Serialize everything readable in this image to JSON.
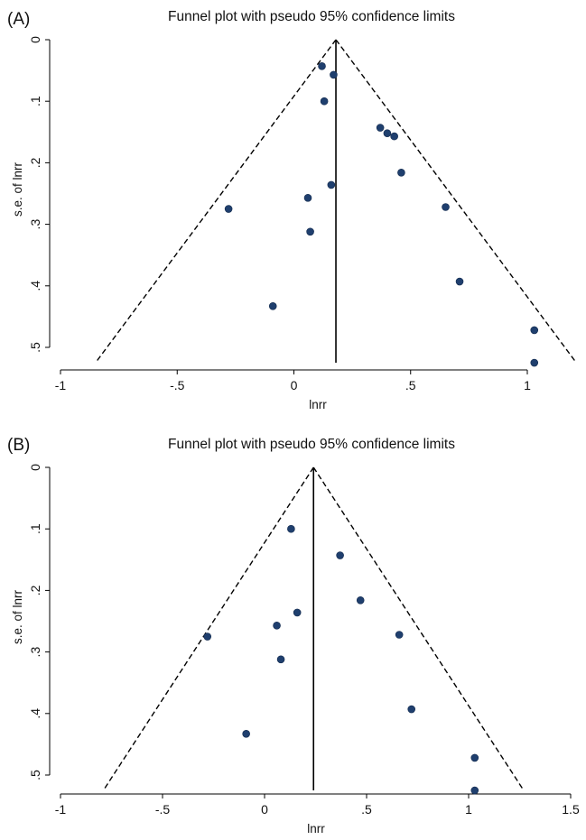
{
  "chart_data": [
    {
      "type": "scatter",
      "panel_label": "(A)",
      "title": "Funnel plot with pseudo 95% confidence limits",
      "xlabel": "lnrr",
      "ylabel": "s.e. of lnrr",
      "xlim": [
        -1,
        1.2
      ],
      "ylim": [
        0,
        0.525
      ],
      "y_reversed": true,
      "x_ticks": [
        -1,
        -0.5,
        0,
        0.5,
        1
      ],
      "x_tick_labels": [
        "-1",
        "-.5",
        "0",
        ".5",
        "1"
      ],
      "y_ticks": [
        0,
        0.1,
        0.2,
        0.3,
        0.4,
        0.5
      ],
      "y_tick_labels": [
        "0",
        ".1",
        ".2",
        ".3",
        ".4",
        ".5"
      ],
      "pooled_estimate": 0.18,
      "ci_limits": {
        "apex": [
          0.18,
          0
        ],
        "left_end": [
          -0.85,
          0.525
        ],
        "right_end": [
          1.21,
          0.525
        ]
      },
      "points": [
        {
          "x": 0.12,
          "y": 0.043
        },
        {
          "x": 0.17,
          "y": 0.057
        },
        {
          "x": 0.13,
          "y": 0.1
        },
        {
          "x": 0.37,
          "y": 0.143
        },
        {
          "x": 0.4,
          "y": 0.152
        },
        {
          "x": 0.43,
          "y": 0.157
        },
        {
          "x": 0.46,
          "y": 0.216
        },
        {
          "x": 0.16,
          "y": 0.236
        },
        {
          "x": 0.06,
          "y": 0.257
        },
        {
          "x": -0.28,
          "y": 0.275
        },
        {
          "x": 0.65,
          "y": 0.272
        },
        {
          "x": 0.07,
          "y": 0.312
        },
        {
          "x": 0.71,
          "y": 0.393
        },
        {
          "x": -0.09,
          "y": 0.433
        },
        {
          "x": 1.03,
          "y": 0.472
        },
        {
          "x": 1.03,
          "y": 0.525
        }
      ],
      "grid": false
    },
    {
      "type": "scatter",
      "panel_label": "(B)",
      "title": "Funnel plot with pseudo 95% confidence limits",
      "xlabel": "lnrr",
      "ylabel": "s.e. of lnrr",
      "xlim": [
        -1,
        1.5
      ],
      "ylim": [
        0,
        0.525
      ],
      "y_reversed": true,
      "x_ticks": [
        -1,
        -0.5,
        0,
        0.5,
        1,
        1.5
      ],
      "x_tick_labels": [
        "-1",
        "-.5",
        "0",
        ".5",
        "1",
        "1.5"
      ],
      "y_ticks": [
        0,
        0.1,
        0.2,
        0.3,
        0.4,
        0.5
      ],
      "y_tick_labels": [
        "0",
        ".1",
        ".2",
        ".3",
        ".4",
        ".5"
      ],
      "pooled_estimate": 0.24,
      "ci_limits": {
        "apex": [
          0.24,
          0
        ],
        "left_end": [
          -0.79,
          0.525
        ],
        "right_end": [
          1.27,
          0.525
        ]
      },
      "points": [
        {
          "x": 0.13,
          "y": 0.1
        },
        {
          "x": 0.37,
          "y": 0.143
        },
        {
          "x": 0.47,
          "y": 0.216
        },
        {
          "x": 0.16,
          "y": 0.236
        },
        {
          "x": 0.06,
          "y": 0.257
        },
        {
          "x": -0.28,
          "y": 0.275
        },
        {
          "x": 0.66,
          "y": 0.272
        },
        {
          "x": 0.08,
          "y": 0.312
        },
        {
          "x": 0.72,
          "y": 0.393
        },
        {
          "x": -0.09,
          "y": 0.433
        },
        {
          "x": 1.03,
          "y": 0.472
        },
        {
          "x": 1.03,
          "y": 0.525
        }
      ],
      "grid": false
    }
  ]
}
